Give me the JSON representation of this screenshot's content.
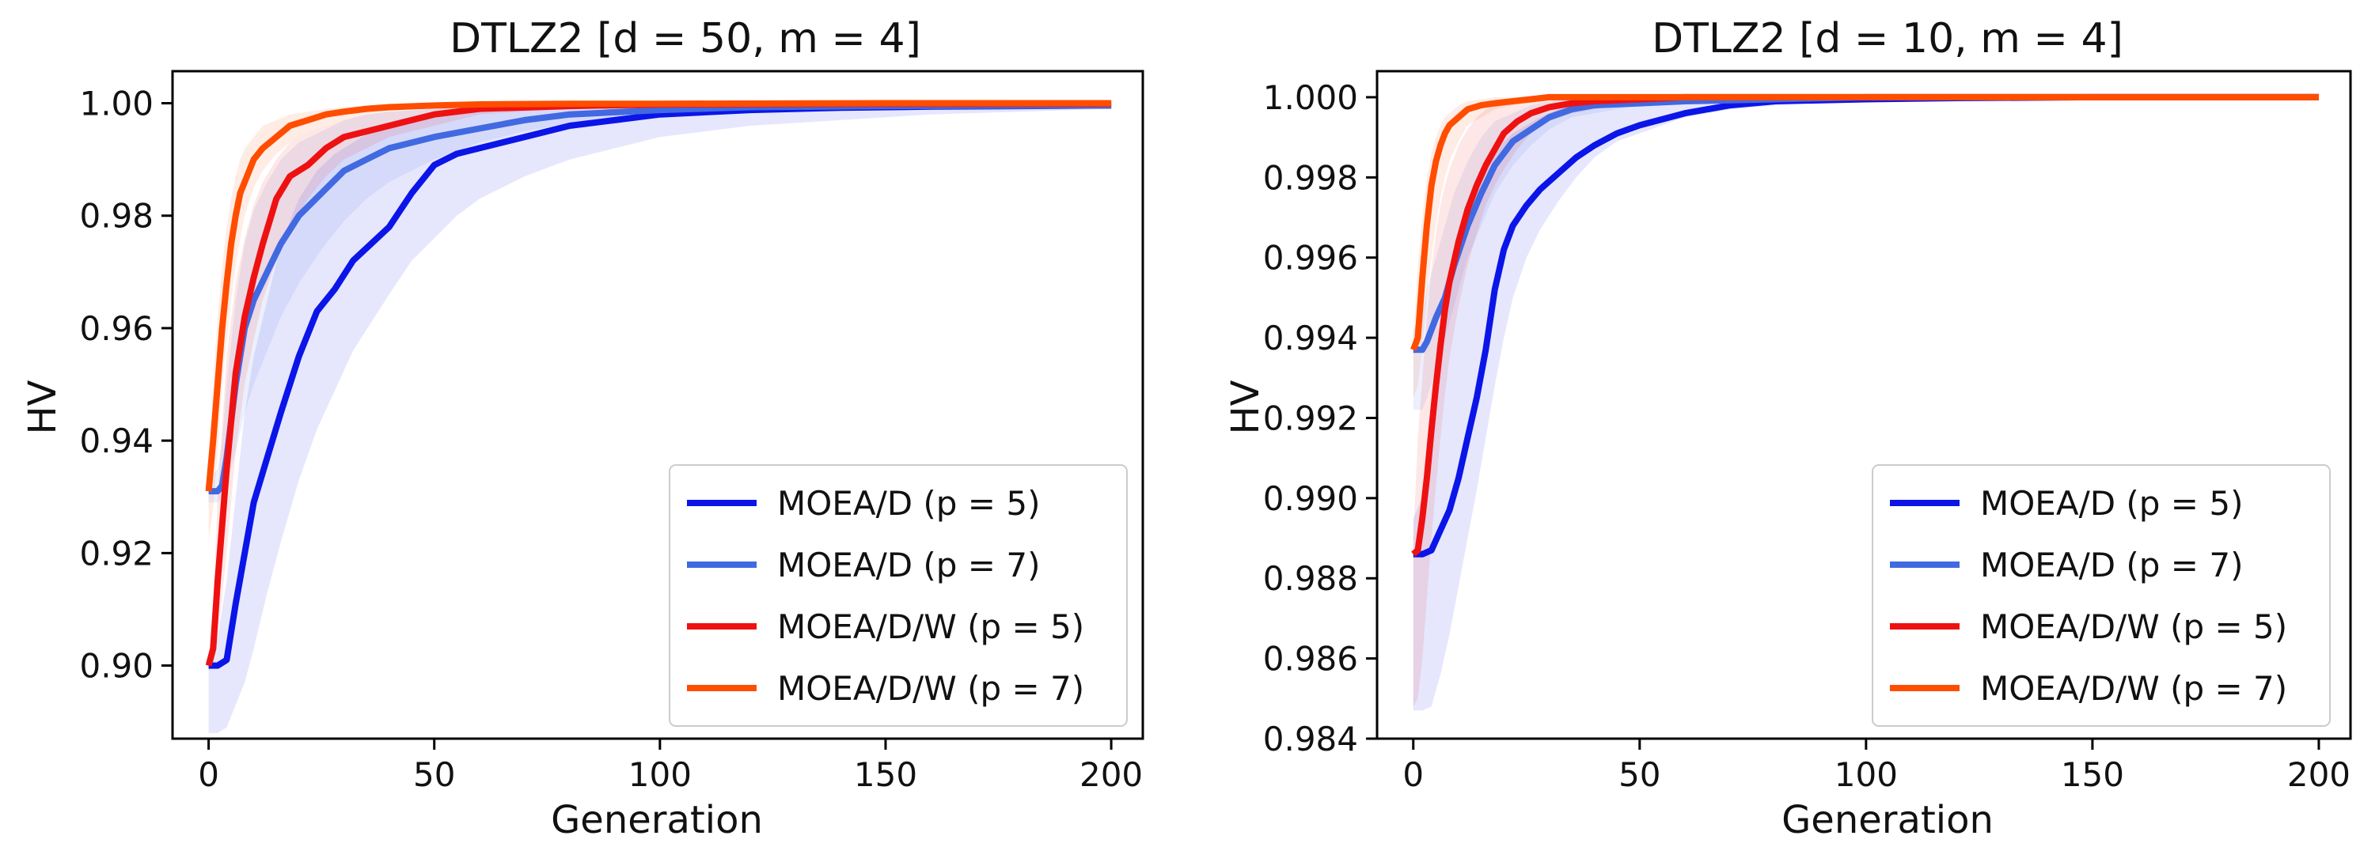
{
  "chart_data": [
    {
      "type": "line",
      "title": "DTLZ2 [d = 50, m = 4]",
      "xlabel": "Generation",
      "ylabel": "HV",
      "xlim": [
        -8,
        207
      ],
      "ylim": [
        0.887,
        1.0057
      ],
      "xticks": [
        0,
        50,
        100,
        150,
        200
      ],
      "yticks": [
        0.9,
        0.92,
        0.94,
        0.96,
        0.98,
        1.0
      ],
      "ytick_labels": [
        "0.90",
        "0.92",
        "0.94",
        "0.96",
        "0.98",
        "1.00"
      ],
      "legend_loc": "lower-right",
      "grid": false,
      "series": [
        {
          "name": "MOEA/D (p = 5)",
          "color": "#0b15e8",
          "x": [
            0,
            2,
            4,
            6,
            8,
            10,
            13,
            16,
            20,
            24,
            28,
            32,
            36,
            40,
            45,
            50,
            55,
            60,
            70,
            80,
            90,
            100,
            120,
            140,
            160,
            180,
            200
          ],
          "y": [
            0.9,
            0.9,
            0.901,
            0.911,
            0.92,
            0.929,
            0.937,
            0.945,
            0.955,
            0.963,
            0.967,
            0.972,
            0.975,
            0.978,
            0.984,
            0.989,
            0.991,
            0.992,
            0.994,
            0.996,
            0.997,
            0.998,
            0.9988,
            0.9992,
            0.9994,
            0.9995,
            0.9996
          ],
          "band_low": [
            0.888,
            0.888,
            0.889,
            0.893,
            0.897,
            0.903,
            0.913,
            0.922,
            0.933,
            0.942,
            0.949,
            0.956,
            0.961,
            0.966,
            0.972,
            0.976,
            0.98,
            0.983,
            0.987,
            0.99,
            0.992,
            0.994,
            0.996,
            0.997,
            0.998,
            0.9985,
            0.999
          ],
          "band_high": [
            0.902,
            0.905,
            0.915,
            0.93,
            0.945,
            0.955,
            0.965,
            0.975,
            0.983,
            0.988,
            0.991,
            0.993,
            0.995,
            0.996,
            0.997,
            0.998,
            0.9985,
            0.999,
            0.9993,
            0.9995,
            0.9997,
            0.9998,
            0.9999,
            0.9999,
            0.9999,
            0.9999,
            0.9999
          ]
        },
        {
          "name": "MOEA/D (p = 7)",
          "color": "#4169e1",
          "x": [
            0,
            2,
            3,
            4,
            6,
            8,
            10,
            13,
            16,
            20,
            25,
            30,
            35,
            40,
            50,
            60,
            70,
            80,
            100,
            120,
            150,
            200
          ],
          "y": [
            0.931,
            0.931,
            0.932,
            0.937,
            0.95,
            0.96,
            0.965,
            0.97,
            0.975,
            0.98,
            0.984,
            0.988,
            0.99,
            0.992,
            0.994,
            0.9955,
            0.997,
            0.998,
            0.9988,
            0.9993,
            0.9995,
            0.9996
          ],
          "band_low": [
            0.929,
            0.929,
            0.93,
            0.932,
            0.938,
            0.945,
            0.95,
            0.956,
            0.962,
            0.968,
            0.974,
            0.979,
            0.983,
            0.986,
            0.99,
            0.993,
            0.995,
            0.9965,
            0.998,
            0.999,
            0.9993,
            0.9995
          ],
          "band_high": [
            0.933,
            0.935,
            0.94,
            0.95,
            0.965,
            0.975,
            0.981,
            0.986,
            0.99,
            0.993,
            0.995,
            0.997,
            0.998,
            0.9985,
            0.999,
            0.9993,
            0.9995,
            0.9997,
            0.9998,
            0.9999,
            0.9999,
            0.9999
          ]
        },
        {
          "name": "MOEA/D/W (p = 5)",
          "color": "#ee1111",
          "x": [
            0,
            1,
            2,
            4,
            6,
            8,
            10,
            12,
            15,
            18,
            22,
            26,
            30,
            35,
            40,
            50,
            60,
            80,
            100,
            150,
            200
          ],
          "y": [
            0.9,
            0.903,
            0.915,
            0.935,
            0.952,
            0.962,
            0.969,
            0.975,
            0.983,
            0.987,
            0.989,
            0.992,
            0.994,
            0.995,
            0.996,
            0.998,
            0.999,
            0.9995,
            0.9998,
            0.9999,
            0.9999
          ],
          "band_low": [
            0.899,
            0.9,
            0.905,
            0.92,
            0.938,
            0.95,
            0.958,
            0.965,
            0.972,
            0.978,
            0.983,
            0.987,
            0.99,
            0.992,
            0.994,
            0.996,
            0.998,
            0.999,
            0.9995,
            0.9998,
            0.9998
          ],
          "band_high": [
            0.901,
            0.91,
            0.93,
            0.955,
            0.968,
            0.976,
            0.982,
            0.986,
            0.99,
            0.993,
            0.995,
            0.996,
            0.997,
            0.998,
            0.9985,
            0.999,
            0.9995,
            0.9998,
            0.9999,
            1.0,
            1.0
          ]
        },
        {
          "name": "MOEA/D/W (p = 7)",
          "color": "#ff4d00",
          "x": [
            0,
            1,
            2,
            3,
            4,
            5,
            6,
            7,
            8,
            10,
            12,
            15,
            18,
            22,
            26,
            30,
            35,
            40,
            50,
            60,
            80,
            100,
            150,
            200
          ],
          "y": [
            0.931,
            0.94,
            0.95,
            0.96,
            0.968,
            0.975,
            0.98,
            0.984,
            0.986,
            0.99,
            0.992,
            0.994,
            0.996,
            0.997,
            0.998,
            0.9985,
            0.999,
            0.9993,
            0.9996,
            0.9998,
            0.9999,
            0.9999,
            1.0,
            1.0
          ],
          "band_low": [
            0.922,
            0.928,
            0.938,
            0.95,
            0.958,
            0.965,
            0.971,
            0.976,
            0.98,
            0.985,
            0.988,
            0.991,
            0.993,
            0.995,
            0.996,
            0.997,
            0.998,
            0.9985,
            0.9992,
            0.9995,
            0.9998,
            0.9999,
            0.9999,
            0.9999
          ],
          "band_high": [
            0.935,
            0.95,
            0.962,
            0.971,
            0.978,
            0.983,
            0.987,
            0.99,
            0.992,
            0.994,
            0.996,
            0.997,
            0.998,
            0.9985,
            0.999,
            0.9993,
            0.9995,
            0.9996,
            0.9998,
            0.9999,
            1.0,
            1.0,
            1.0,
            1.0
          ]
        }
      ]
    },
    {
      "type": "line",
      "title": "DTLZ2 [d = 10, m = 4]",
      "xlabel": "Generation",
      "ylabel": "HV",
      "xlim": [
        -8,
        207
      ],
      "ylim": [
        0.984,
        1.00065
      ],
      "xticks": [
        0,
        50,
        100,
        150,
        200
      ],
      "yticks": [
        0.984,
        0.986,
        0.988,
        0.99,
        0.992,
        0.994,
        0.996,
        0.998,
        1.0
      ],
      "ytick_labels": [
        "0.984",
        "0.986",
        "0.988",
        "0.990",
        "0.992",
        "0.994",
        "0.996",
        "0.998",
        "1.000"
      ],
      "legend_loc": "lower-right",
      "grid": false,
      "series": [
        {
          "name": "MOEA/D (p = 5)",
          "color": "#0b15e8",
          "x": [
            0,
            2,
            4,
            6,
            8,
            10,
            12,
            14,
            16,
            18,
            20,
            22,
            25,
            28,
            32,
            36,
            40,
            45,
            50,
            60,
            70,
            80,
            100,
            120,
            150,
            200
          ],
          "y": [
            0.9886,
            0.9886,
            0.9887,
            0.9892,
            0.9897,
            0.9905,
            0.9915,
            0.9925,
            0.9937,
            0.9952,
            0.9962,
            0.9968,
            0.9973,
            0.9977,
            0.9981,
            0.9985,
            0.9988,
            0.9991,
            0.9993,
            0.9996,
            0.9998,
            0.9999,
            0.99995,
            0.99998,
            1.0,
            1.0
          ],
          "band_low": [
            0.9847,
            0.9847,
            0.9848,
            0.9856,
            0.9866,
            0.9878,
            0.989,
            0.9902,
            0.9915,
            0.9928,
            0.994,
            0.995,
            0.996,
            0.9967,
            0.9974,
            0.998,
            0.9985,
            0.9989,
            0.9991,
            0.9995,
            0.9997,
            0.9998,
            0.9999,
            0.99995,
            1.0,
            1.0
          ],
          "band_high": [
            0.9895,
            0.99,
            0.9915,
            0.9935,
            0.995,
            0.9962,
            0.997,
            0.9977,
            0.9982,
            0.9986,
            0.9989,
            0.9991,
            0.9993,
            0.9995,
            0.9997,
            0.9998,
            0.99985,
            0.9999,
            0.99995,
            1.0,
            1.0,
            1.0,
            1.0,
            1.0,
            1.0,
            1.0
          ]
        },
        {
          "name": "MOEA/D (p = 7)",
          "color": "#4169e1",
          "x": [
            0,
            2,
            3,
            5,
            7,
            9,
            12,
            15,
            18,
            22,
            26,
            30,
            35,
            40,
            50,
            60,
            80,
            100,
            150,
            200
          ],
          "y": [
            0.9937,
            0.9937,
            0.9939,
            0.9945,
            0.995,
            0.9958,
            0.9968,
            0.9976,
            0.9983,
            0.9989,
            0.9992,
            0.9995,
            0.9997,
            0.9998,
            0.99985,
            0.9999,
            0.99995,
            1.0,
            1.0,
            1.0
          ],
          "band_low": [
            0.9922,
            0.9922,
            0.9925,
            0.9932,
            0.994,
            0.9948,
            0.996,
            0.9968,
            0.9976,
            0.9983,
            0.9988,
            0.9992,
            0.9995,
            0.9996,
            0.9998,
            0.99985,
            0.9999,
            0.99995,
            1.0,
            1.0
          ],
          "band_high": [
            0.9942,
            0.9946,
            0.9952,
            0.996,
            0.9968,
            0.9976,
            0.9984,
            0.999,
            0.9994,
            0.9996,
            0.9998,
            0.9999,
            0.99995,
            1.0,
            1.0,
            1.0,
            1.0,
            1.0,
            1.0,
            1.0
          ]
        },
        {
          "name": "MOEA/D/W (p = 5)",
          "color": "#ee1111",
          "x": [
            0,
            1,
            2,
            3,
            4,
            5,
            6,
            7,
            8,
            10,
            12,
            14,
            16,
            18,
            20,
            23,
            26,
            30,
            35,
            40,
            50,
            60,
            80,
            100,
            150,
            200
          ],
          "y": [
            0.9886,
            0.9887,
            0.9895,
            0.9905,
            0.9917,
            0.9928,
            0.9938,
            0.9947,
            0.9954,
            0.9964,
            0.9972,
            0.9978,
            0.9983,
            0.9987,
            0.9991,
            0.9994,
            0.9996,
            0.99975,
            0.99985,
            0.9999,
            0.99995,
            1.0,
            1.0,
            1.0,
            1.0,
            1.0
          ],
          "band_low": [
            0.9848,
            0.985,
            0.986,
            0.9875,
            0.989,
            0.9903,
            0.9915,
            0.9926,
            0.9935,
            0.9948,
            0.9958,
            0.9966,
            0.9973,
            0.9978,
            0.9982,
            0.9987,
            0.9991,
            0.9994,
            0.9996,
            0.9997,
            0.9999,
            0.99995,
            1.0,
            1.0,
            1.0,
            1.0
          ],
          "band_high": [
            0.989,
            0.9915,
            0.993,
            0.9945,
            0.9957,
            0.9966,
            0.9973,
            0.9978,
            0.9982,
            0.9988,
            0.9992,
            0.9995,
            0.9997,
            0.9998,
            0.99985,
            0.9999,
            1.0,
            1.0,
            1.0,
            1.0,
            1.0,
            1.0,
            1.0,
            1.0,
            1.0,
            1.0
          ]
        },
        {
          "name": "MOEA/D/W (p = 7)",
          "color": "#ff4d00",
          "x": [
            0,
            1,
            2,
            3,
            4,
            5,
            6,
            7,
            8,
            10,
            12,
            15,
            18,
            22,
            26,
            30,
            40,
            50,
            60,
            80,
            100,
            150,
            200
          ],
          "y": [
            0.9937,
            0.994,
            0.9955,
            0.9968,
            0.9978,
            0.9984,
            0.9988,
            0.9991,
            0.9993,
            0.9995,
            0.9997,
            0.9998,
            0.99985,
            0.9999,
            0.99995,
            1.0,
            1.0,
            1.0,
            1.0,
            1.0,
            1.0,
            1.0,
            1.0
          ],
          "band_low": [
            0.9925,
            0.9928,
            0.9938,
            0.995,
            0.996,
            0.9968,
            0.9975,
            0.998,
            0.9984,
            0.9989,
            0.9993,
            0.9995,
            0.9997,
            0.9998,
            0.9999,
            0.99995,
            1.0,
            1.0,
            1.0,
            1.0,
            1.0,
            1.0,
            1.0
          ],
          "band_high": [
            0.994,
            0.9958,
            0.997,
            0.998,
            0.9986,
            0.999,
            0.9993,
            0.9995,
            0.9996,
            0.9998,
            0.9999,
            0.99995,
            1.0,
            1.0,
            1.0,
            1.0,
            1.0,
            1.0,
            1.0,
            1.0,
            1.0,
            1.0,
            1.0
          ]
        }
      ]
    }
  ]
}
